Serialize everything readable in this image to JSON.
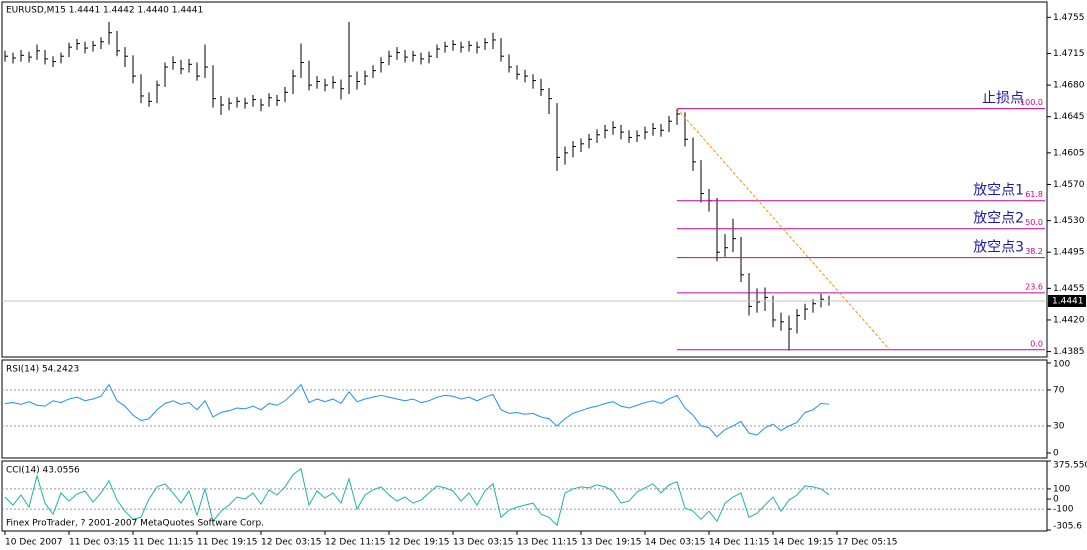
{
  "header": "EURUSD,M15  1.4441 1.4442 1.4440 1.4441",
  "chart_data": [
    {
      "type": "ohlc",
      "color": "#000000",
      "categories": [
        "10 Dec 2007",
        "11 Dec 03:15",
        "11 Dec 11:15",
        "11 Dec 19:15",
        "12 Dec 03:15",
        "12 Dec 11:15",
        "12 Dec 19:15",
        "13 Dec 03:15",
        "13 Dec 11:15",
        "13 Dec 19:15",
        "14 Dec 03:15",
        "14 Dec 11:15",
        "14 Dec 19:15",
        "17 Dec 05:15"
      ],
      "high": [
        1.4718,
        1.4716,
        1.4719,
        1.4717,
        1.4725,
        1.4719,
        1.4712,
        1.4716,
        1.4727,
        1.4731,
        1.4728,
        1.4729,
        1.4733,
        1.475,
        1.474,
        1.4722,
        1.4713,
        1.4692,
        1.4672,
        1.4685,
        1.4705,
        1.4712,
        1.4708,
        1.4709,
        1.4705,
        1.4725,
        1.4702,
        1.4668,
        1.4666,
        1.4667,
        1.4666,
        1.4669,
        1.4665,
        1.4671,
        1.4669,
        1.4678,
        1.4697,
        1.4726,
        1.4707,
        1.469,
        1.4687,
        1.469,
        1.4686,
        1.475,
        1.4695,
        1.4696,
        1.4702,
        1.4711,
        1.4718,
        1.4722,
        1.4719,
        1.4718,
        1.4716,
        1.4717,
        1.4725,
        1.4728,
        1.473,
        1.4728,
        1.4729,
        1.4728,
        1.4732,
        1.4738,
        1.4732,
        1.4714,
        1.4702,
        1.4697,
        1.4692,
        1.4687,
        1.4677,
        1.466,
        1.4612,
        1.4618,
        1.4621,
        1.4626,
        1.4631,
        1.4636,
        1.464,
        1.4636,
        1.463,
        1.463,
        1.4634,
        1.4638,
        1.4637,
        1.4646,
        1.4654,
        1.465,
        1.4622,
        1.4597,
        1.4565,
        1.4555,
        1.4515,
        1.4532,
        1.4512,
        1.4472,
        1.4455,
        1.4456,
        1.4447,
        1.4428,
        1.4425,
        1.4432,
        1.4438,
        1.4443,
        1.4449,
        1.4447
      ],
      "low": [
        1.4706,
        1.4704,
        1.4706,
        1.4705,
        1.4708,
        1.4703,
        1.47,
        1.4704,
        1.4711,
        1.4719,
        1.4715,
        1.4717,
        1.472,
        1.4725,
        1.4712,
        1.47,
        1.4682,
        1.466,
        1.4656,
        1.466,
        1.4678,
        1.4697,
        1.4692,
        1.4694,
        1.4685,
        1.4688,
        1.4655,
        1.4647,
        1.4652,
        1.4655,
        1.4654,
        1.4656,
        1.4651,
        1.4656,
        1.4657,
        1.4661,
        1.467,
        1.4688,
        1.4674,
        1.4676,
        1.4673,
        1.4676,
        1.4664,
        1.467,
        1.4675,
        1.468,
        1.4688,
        1.4694,
        1.4702,
        1.4708,
        1.4705,
        1.4706,
        1.4703,
        1.4704,
        1.471,
        1.4716,
        1.4718,
        1.4716,
        1.4717,
        1.4715,
        1.4719,
        1.472,
        1.4706,
        1.4694,
        1.4686,
        1.4683,
        1.4676,
        1.4668,
        1.4648,
        1.4585,
        1.4592,
        1.46,
        1.4606,
        1.461,
        1.4616,
        1.4621,
        1.4625,
        1.462,
        1.4616,
        1.4617,
        1.462,
        1.4624,
        1.4623,
        1.4628,
        1.4636,
        1.4612,
        1.4585,
        1.455,
        1.454,
        1.4485,
        1.449,
        1.4495,
        1.4462,
        1.4425,
        1.4428,
        1.443,
        1.4412,
        1.4408,
        1.4386,
        1.4405,
        1.442,
        1.4428,
        1.4434,
        1.4436
      ],
      "close": [
        1.4712,
        1.471,
        1.4713,
        1.4711,
        1.4718,
        1.4709,
        1.4706,
        1.4712,
        1.4722,
        1.4726,
        1.4721,
        1.4724,
        1.4728,
        1.4738,
        1.4718,
        1.4712,
        1.469,
        1.4668,
        1.4662,
        1.468,
        1.47,
        1.4705,
        1.4698,
        1.4703,
        1.469,
        1.47,
        1.4665,
        1.4658,
        1.466,
        1.4662,
        1.466,
        1.4664,
        1.4658,
        1.4666,
        1.4663,
        1.4672,
        1.469,
        1.4705,
        1.468,
        1.4684,
        1.468,
        1.4683,
        1.4676,
        1.469,
        1.4684,
        1.469,
        1.4696,
        1.4705,
        1.4712,
        1.4716,
        1.4711,
        1.4713,
        1.4709,
        1.4712,
        1.472,
        1.4723,
        1.4725,
        1.4722,
        1.4724,
        1.4722,
        1.4727,
        1.473,
        1.4712,
        1.47,
        1.4692,
        1.469,
        1.4685,
        1.4675,
        1.4665,
        1.46,
        1.4605,
        1.4612,
        1.4615,
        1.462,
        1.4625,
        1.463,
        1.4633,
        1.4628,
        1.4622,
        1.4624,
        1.4628,
        1.4632,
        1.463,
        1.464,
        1.4648,
        1.462,
        1.4595,
        1.456,
        1.4552,
        1.4495,
        1.45,
        1.451,
        1.447,
        1.4435,
        1.444,
        1.4445,
        1.442,
        1.4418,
        1.441,
        1.4425,
        1.4432,
        1.4438,
        1.4443,
        1.4441
      ],
      "ylim": [
        1.4379,
        1.4772
      ],
      "yticks": [
        1.4755,
        1.4715,
        {
          "value": 1.468,
          "label": "1.4680"
        },
        1.4645,
        1.4605,
        {
          "value": 1.457,
          "label": "1.4570"
        },
        {
          "value": 1.453,
          "label": "1.4530"
        },
        1.4495,
        1.4455,
        {
          "value": 1.442,
          "label": "1.4420"
        },
        1.4385
      ],
      "last_price": 1.4441,
      "fibo": {
        "color": "#cc0099",
        "levels": [
          {
            "value": 100,
            "label": "100.0",
            "price": 1.4654,
            "annotation": "止损点"
          },
          {
            "value": 61.8,
            "label": "61.8",
            "price": 1.4552,
            "annotation": "放空点1"
          },
          {
            "value": 50,
            "label": "50.0",
            "price": 1.4521,
            "annotation": "放空点2"
          },
          {
            "value": 38.2,
            "label": "38.2",
            "price": 1.4489,
            "annotation": "放空点3"
          },
          {
            "value": 23.6,
            "label": "23.6",
            "price": 1.445
          },
          {
            "value": 0,
            "label": "0.0",
            "price": 1.4387
          }
        ]
      },
      "trendline": {
        "color": "#ff8c00",
        "from": {
          "bar": 84,
          "price": 1.4654
        },
        "to": {
          "bar": 110.6,
          "price": 1.4387
        }
      }
    },
    {
      "type": "line",
      "title": "RSI(14) 54.2423",
      "color": "#1e90ff",
      "values": [
        55,
        56,
        54,
        57,
        53,
        52,
        58,
        56,
        60,
        62,
        58,
        60,
        63,
        76,
        58,
        52,
        42,
        36,
        38,
        48,
        55,
        58,
        54,
        56,
        48,
        58,
        40,
        45,
        47,
        50,
        49,
        52,
        48,
        55,
        53,
        58,
        66,
        76,
        56,
        60,
        57,
        60,
        55,
        68,
        57,
        60,
        62,
        64,
        62,
        60,
        58,
        60,
        56,
        58,
        62,
        64,
        63,
        60,
        62,
        58,
        62,
        65,
        48,
        44,
        45,
        43,
        44,
        40,
        38,
        30,
        38,
        44,
        47,
        50,
        52,
        55,
        57,
        52,
        50,
        53,
        56,
        58,
        55,
        60,
        64,
        50,
        42,
        30,
        28,
        18,
        26,
        30,
        35,
        22,
        20,
        28,
        32,
        25,
        30,
        34,
        45,
        48,
        55,
        54.2
      ],
      "ylim": [
        -5.6,
        103.3
      ],
      "yticks": [
        100,
        70,
        30,
        0
      ],
      "levels": [
        70,
        30
      ]
    },
    {
      "type": "line",
      "title": "CCI(14) 43.0556",
      "color": "#20b2aa",
      "caption": "Finex ProTrader, ? 2001-2007 MetaQuotes Software Corp.",
      "values": [
        20,
        -60,
        40,
        -80,
        230,
        -40,
        -150,
        60,
        -20,
        50,
        80,
        -30,
        60,
        180,
        -10,
        -120,
        -200,
        -180,
        0,
        120,
        150,
        60,
        -40,
        80,
        -160,
        100,
        -220,
        -120,
        -60,
        20,
        0,
        60,
        -50,
        90,
        40,
        120,
        240,
        300,
        -60,
        80,
        10,
        60,
        -40,
        200,
        -100,
        40,
        90,
        120,
        40,
        -20,
        20,
        -40,
        -10,
        60,
        130,
        110,
        80,
        -20,
        60,
        -60,
        80,
        150,
        -180,
        -110,
        -80,
        -60,
        -40,
        -150,
        -180,
        -260,
        60,
        100,
        120,
        110,
        140,
        120,
        80,
        -40,
        -20,
        70,
        110,
        150,
        60,
        140,
        170,
        -90,
        -120,
        -200,
        -120,
        -220,
        -40,
        20,
        60,
        -180,
        -140,
        -60,
        20,
        -120,
        -10,
        40,
        130,
        120,
        100,
        43
      ],
      "ylim": [
        -305.6,
        375.5502
      ],
      "yticks": [
        375.5502,
        100,
        0,
        -100,
        -305.6
      ],
      "levels": [
        100,
        -100
      ]
    }
  ]
}
